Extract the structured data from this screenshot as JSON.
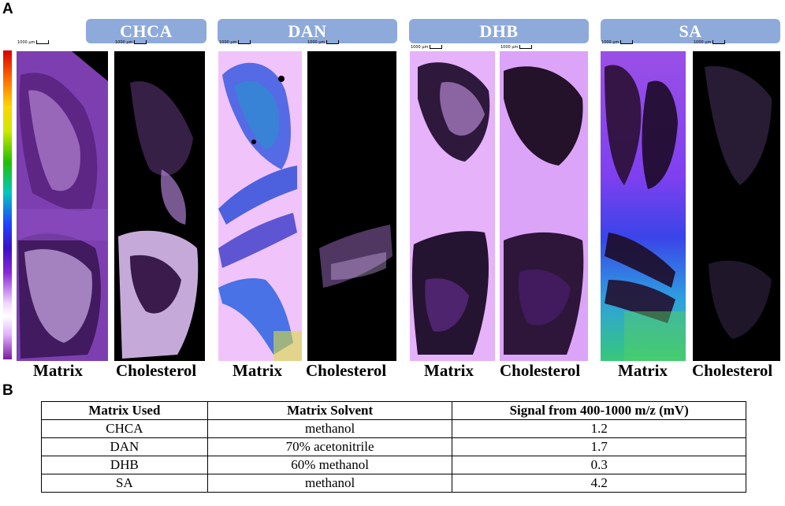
{
  "panels": {
    "a": "A",
    "b": "B"
  },
  "colorbar": {
    "gradient_top": "#d80000",
    "gradient_bottom": "#7a1aa0"
  },
  "groups": [
    {
      "label": "CHCA",
      "tiles": [
        "Matrix",
        "Cholesterol"
      ]
    },
    {
      "label": "DAN",
      "tiles": [
        "Matrix",
        "Cholesterol"
      ]
    },
    {
      "label": "DHB",
      "tiles": [
        "Matrix",
        "Cholesterol"
      ]
    },
    {
      "label": "SA",
      "tiles": [
        "Matrix",
        "Cholesterol"
      ]
    }
  ],
  "scalebar_label": "1000 μm",
  "table": {
    "headers": [
      "Matrix Used",
      "Matrix Solvent",
      "Signal from 400-1000 m/z (mV)"
    ],
    "rows": [
      [
        "CHCA",
        "methanol",
        "1.2"
      ],
      [
        "DAN",
        "70% acetonitrile",
        "1.7"
      ],
      [
        "DHB",
        "60% methanol",
        "0.3"
      ],
      [
        "SA",
        "methanol",
        "4.2"
      ]
    ]
  }
}
